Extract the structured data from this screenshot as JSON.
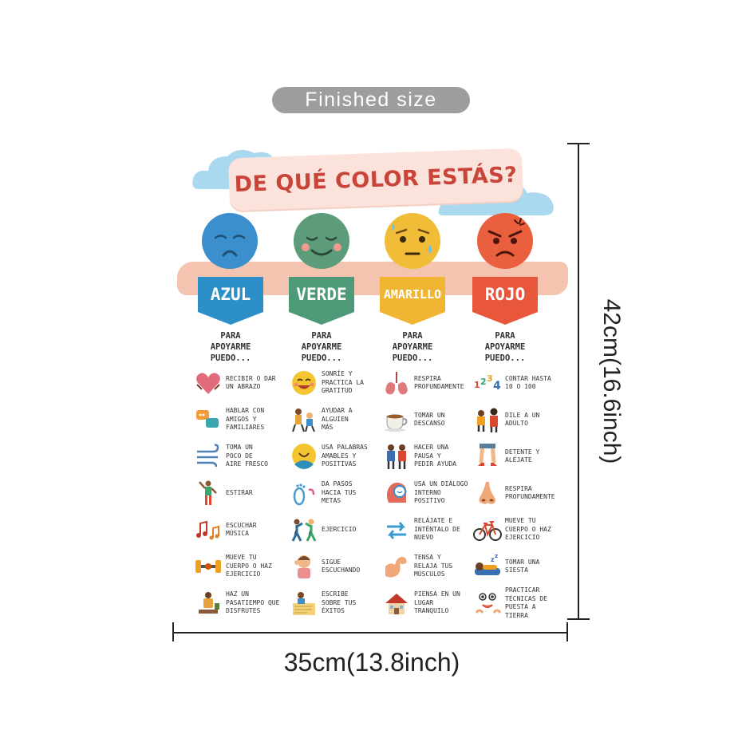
{
  "badge": "Finished size",
  "dimension_height": "42cm(16.6inch)",
  "dimension_width": "35cm(13.8inch)",
  "poster": {
    "title": "DE QUÉ COLOR ESTÁS?",
    "columns": [
      {
        "label": "AZUL",
        "color": "#2d8fc8",
        "face_color": "#3a8fcc",
        "face_icon": "sad-face-icon",
        "heading": "PARA\nAPOYARME\nPUEDO...",
        "items": [
          {
            "icon": "heart-hug-icon",
            "text": "RECIBIR O DAR\nUN ABRAZO"
          },
          {
            "icon": "chat-bubbles-icon",
            "text": "HABLAR CON\nAMIGOS Y\nFAMILIARES"
          },
          {
            "icon": "wind-icon",
            "text": "TOMA UN\nPOCO DE\nAIRE FRESCO"
          },
          {
            "icon": "stretch-icon",
            "text": "ESTIRAR"
          },
          {
            "icon": "music-notes-icon",
            "text": "ESCUCHAR\nMÚSICA"
          },
          {
            "icon": "dumbbell-icon",
            "text": "MUEVE TU\nCUERPO O HAZ\nEJERCICIO"
          },
          {
            "icon": "hobby-icon",
            "text": "HAZ UN\nPASATIEMPO QUE\nDISFRUTES"
          }
        ]
      },
      {
        "label": "VERDE",
        "color": "#4e9a78",
        "face_color": "#5c9c7a",
        "face_icon": "calm-face-icon",
        "heading": "PARA\nAPOYARME\nPUEDO...",
        "items": [
          {
            "icon": "smile-icon",
            "text": "SONRÍE Y\nPRACTICA LA\nGRATITUD"
          },
          {
            "icon": "helping-icon",
            "text": "AYUDAR A\nALGUIEN\nMÁS"
          },
          {
            "icon": "kind-words-icon",
            "text": "USA PALABRAS\nAMABLES Y\nPOSITIVAS"
          },
          {
            "icon": "footsteps-icon",
            "text": "DA PASOS\nHACIA TUS\nMETAS"
          },
          {
            "icon": "exercise-icon",
            "text": "EJERCICIO"
          },
          {
            "icon": "listening-icon",
            "text": "SIGUE\nESCUCHANDO"
          },
          {
            "icon": "writing-icon",
            "text": "ESCRIBE\nSOBRE TUS\nÉXITOS"
          }
        ]
      },
      {
        "label": "AMARILLO",
        "color": "#f0b532",
        "face_color": "#f1bd38",
        "face_icon": "worried-face-icon",
        "heading": "PARA\nAPOYARME\nPUEDO...",
        "items": [
          {
            "icon": "lungs-icon",
            "text": "RESPIRA\nPROFUNDAMENTE"
          },
          {
            "icon": "tea-cup-icon",
            "text": "TOMAR UN\nDESCANSO"
          },
          {
            "icon": "ask-help-icon",
            "text": "HACER UNA\nPAUSA Y\nPEDIR AYUDA"
          },
          {
            "icon": "inner-dialogue-icon",
            "text": "USA UN DIÁLOGO\nINTERNO POSITIVO"
          },
          {
            "icon": "retry-arrows-icon",
            "text": "RELÁJATE E\nINTÉNTALO DE\nNUEVO"
          },
          {
            "icon": "muscle-icon",
            "text": "TENSA Y\nRELAJA TUS\nMÚSCULOS"
          },
          {
            "icon": "house-icon",
            "text": "PIENSA EN UN\nLUGAR\nTRANQUILO"
          }
        ]
      },
      {
        "label": "ROJO",
        "color": "#e8573b",
        "face_color": "#ea5f3e",
        "face_icon": "angry-face-icon",
        "heading": "PARA\nAPOYARME\nPUEDO...",
        "items": [
          {
            "icon": "numbers-icon",
            "text": "CONTAR HASTA\n10 O 100"
          },
          {
            "icon": "talk-adult-icon",
            "text": "DILE A UN\nADULTO"
          },
          {
            "icon": "stop-legs-icon",
            "text": "DETENTE Y\nALÉJATE"
          },
          {
            "icon": "nose-icon",
            "text": "RESPIRA\nPROFUNDAMENTE"
          },
          {
            "icon": "bicycle-icon",
            "text": "MUEVE TU\nCUERPO O HAZ\nEJERCICIO"
          },
          {
            "icon": "nap-icon",
            "text": "TOMAR UNA\nSIESTA"
          },
          {
            "icon": "grounding-icon",
            "text": "PRACTICAR\nTÉCNICAS DE\nPUESTA A\nTIERRA"
          }
        ]
      }
    ]
  }
}
